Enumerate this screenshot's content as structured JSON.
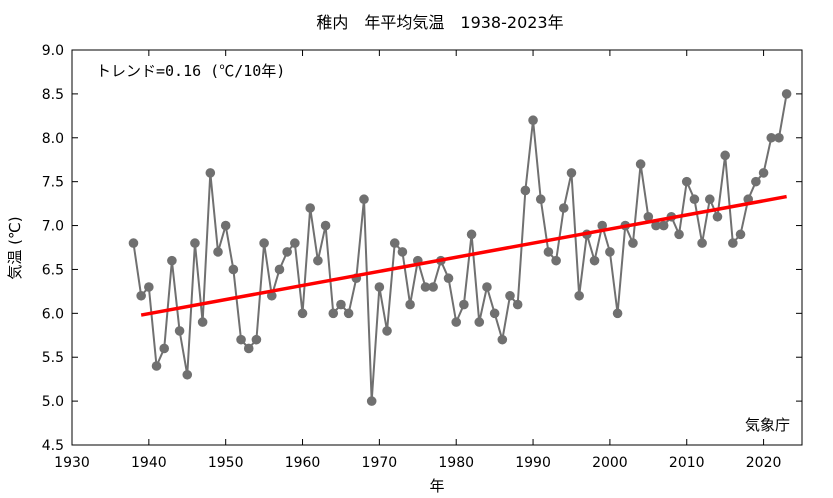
{
  "chart_data": {
    "type": "line",
    "title": "稚内　年平均気温　1938-2023年",
    "xlabel": "年",
    "ylabel": "気温 (℃)",
    "xlim": [
      1930,
      2025
    ],
    "ylim": [
      4.5,
      9.0
    ],
    "xticks": [
      "1930",
      "1940",
      "1950",
      "1960",
      "1970",
      "1980",
      "1990",
      "2000",
      "2010",
      "2020"
    ],
    "yticks": [
      "4.5",
      "5.0",
      "5.5",
      "6.0",
      "6.5",
      "7.0",
      "7.5",
      "8.0",
      "8.5",
      "9.0"
    ],
    "grid": false,
    "annotation": "トレンド=0.16 (℃/10年)",
    "source": "気象庁",
    "colors": {
      "series": "#707070",
      "trend": "#ff0000"
    },
    "series": [
      {
        "x": [
          1938,
          1939,
          1940,
          1941,
          1942,
          1943,
          1944,
          1945,
          1946,
          1947,
          1948,
          1949,
          1950,
          1951,
          1952,
          1953,
          1954,
          1955,
          1956,
          1957,
          1958,
          1959,
          1960,
          1961,
          1962,
          1963,
          1964,
          1965,
          1966,
          1967,
          1968,
          1969,
          1970,
          1971,
          1972,
          1973,
          1974,
          1975,
          1976,
          1977,
          1978,
          1979,
          1980,
          1981,
          1982,
          1983,
          1984,
          1985,
          1986,
          1987,
          1988,
          1989,
          1990,
          1991,
          1992,
          1993,
          1994,
          1995,
          1996,
          1997,
          1998,
          1999,
          2000,
          2001,
          2002,
          2003,
          2004,
          2005,
          2006,
          2007,
          2008,
          2009,
          2010,
          2011,
          2012,
          2013,
          2014,
          2015,
          2016,
          2017,
          2018,
          2019,
          2020,
          2021,
          2022,
          2023
        ],
        "values": [
          6.8,
          6.2,
          6.3,
          5.4,
          5.6,
          6.6,
          5.8,
          5.3,
          6.8,
          5.9,
          7.6,
          6.7,
          7.0,
          6.5,
          5.7,
          5.6,
          5.7,
          6.8,
          6.2,
          6.5,
          6.7,
          6.8,
          6.0,
          7.2,
          6.6,
          7.0,
          6.0,
          6.1,
          6.0,
          6.4,
          7.3,
          5.0,
          6.3,
          5.8,
          6.8,
          6.7,
          6.1,
          6.6,
          6.3,
          6.3,
          6.6,
          6.4,
          5.9,
          6.1,
          6.9,
          5.9,
          6.3,
          6.0,
          5.7,
          6.2,
          6.1,
          7.4,
          8.2,
          7.3,
          6.7,
          6.6,
          7.2,
          7.6,
          6.2,
          6.9,
          6.6,
          7.0,
          6.7,
          6.0,
          7.0,
          6.8,
          7.7,
          7.1,
          7.0,
          7.0,
          7.1,
          6.9,
          7.5,
          7.3,
          6.8,
          7.3,
          7.1,
          7.8,
          6.8,
          6.9,
          7.3,
          7.5,
          7.6,
          8.0,
          8.0,
          8.5
        ]
      },
      {
        "x": [
          1939,
          2023
        ],
        "values": [
          5.98,
          7.33
        ]
      }
    ]
  }
}
